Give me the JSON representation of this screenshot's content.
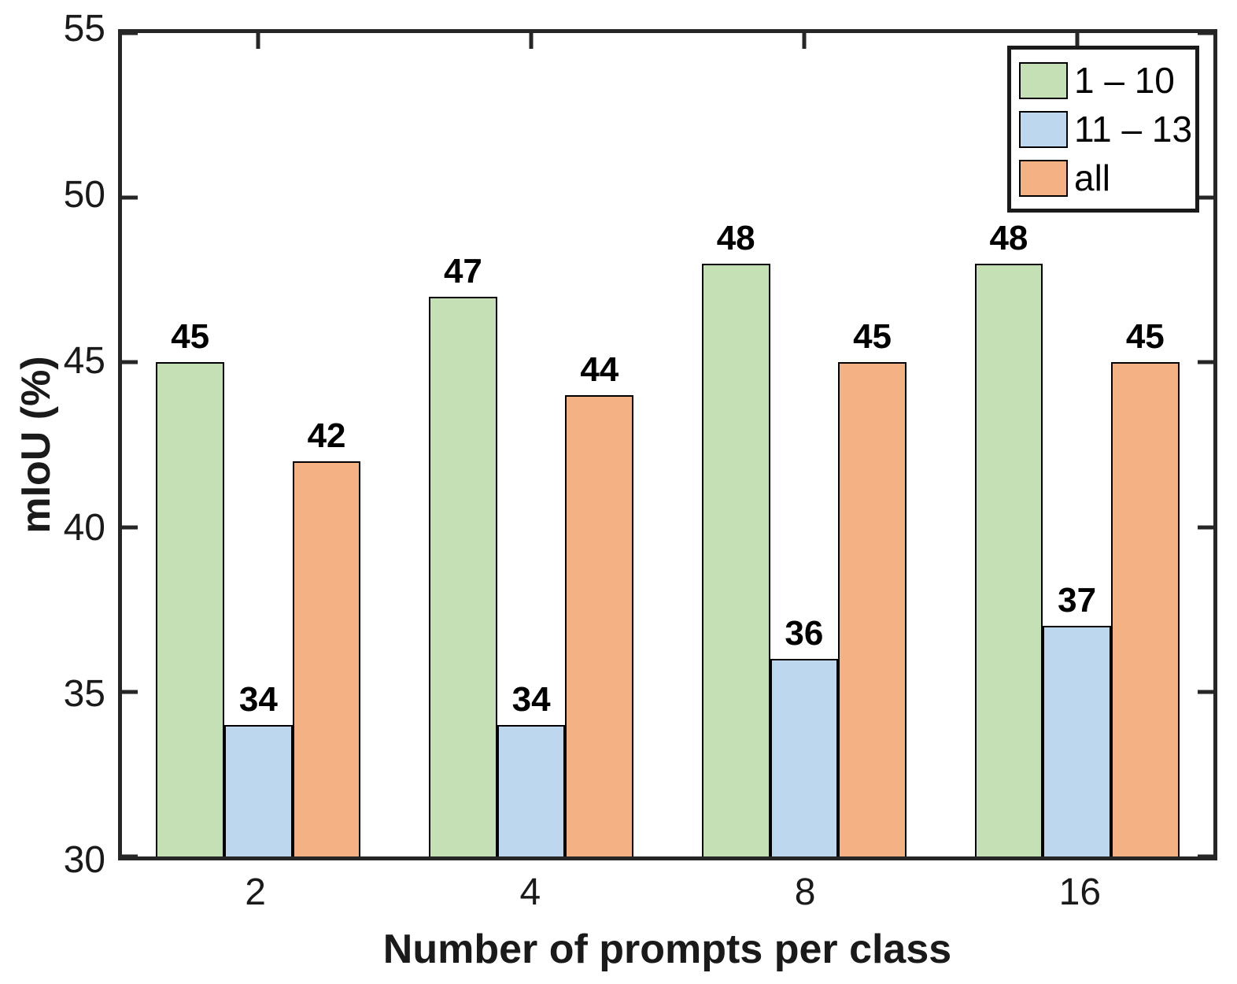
{
  "figure": {
    "background": "#ffffff",
    "axis_color": "#262626",
    "text_color": "#1a1a1a"
  },
  "chart_data": {
    "type": "bar",
    "title": "",
    "xlabel": "Number of prompts per class",
    "ylabel": "mIoU (%)",
    "categories": [
      "2",
      "4",
      "8",
      "16"
    ],
    "series": [
      {
        "name": "1 – 10",
        "color": "#c5e0b4",
        "values": [
          45,
          47,
          48,
          48
        ]
      },
      {
        "name": "11 – 13",
        "color": "#bdd7ee",
        "values": [
          34,
          34,
          36,
          37
        ]
      },
      {
        "name": "all",
        "color": "#f4b183",
        "values": [
          42,
          44,
          45,
          45
        ]
      }
    ],
    "ylim": [
      30,
      55
    ],
    "yticks": [
      30,
      35,
      40,
      45,
      50,
      55
    ],
    "bar_edge_color": "#000000",
    "value_labels": true,
    "grid": false,
    "legend_position": "top-right",
    "tick_direction": "in",
    "box": true
  }
}
